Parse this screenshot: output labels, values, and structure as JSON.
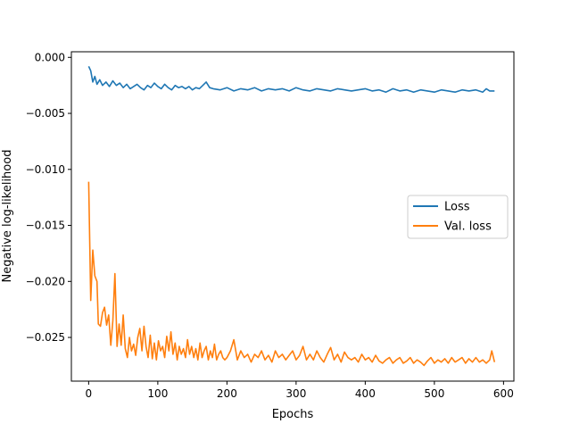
{
  "chart_data": {
    "type": "line",
    "title": "",
    "xlabel": "Epochs",
    "ylabel": "Negative log-likelihood",
    "xlim": [
      -25,
      615
    ],
    "ylim": [
      -0.0289,
      0.0005
    ],
    "xticks": [
      0,
      100,
      200,
      300,
      400,
      500,
      600
    ],
    "xtick_labels": [
      "0",
      "100",
      "200",
      "300",
      "400",
      "500",
      "600"
    ],
    "yticks": [
      0.0,
      -0.005,
      -0.01,
      -0.015,
      -0.02,
      -0.025
    ],
    "ytick_labels": [
      "0.000",
      "−0.005",
      "−0.010",
      "−0.015",
      "−0.020",
      "−0.025"
    ],
    "grid": false,
    "legend_position": "center-right",
    "series": [
      {
        "name": "Loss",
        "color": "#1f77b4",
        "x": [
          0,
          3,
          6,
          9,
          12,
          16,
          20,
          25,
          30,
          35,
          40,
          45,
          50,
          55,
          60,
          65,
          70,
          75,
          80,
          85,
          90,
          95,
          100,
          105,
          110,
          115,
          120,
          125,
          130,
          135,
          140,
          145,
          150,
          155,
          160,
          165,
          170,
          175,
          180,
          190,
          200,
          210,
          220,
          230,
          240,
          250,
          260,
          270,
          280,
          290,
          300,
          310,
          320,
          330,
          340,
          350,
          360,
          370,
          380,
          390,
          400,
          410,
          420,
          430,
          440,
          450,
          460,
          470,
          480,
          490,
          500,
          510,
          520,
          530,
          540,
          550,
          560,
          570,
          575,
          580,
          587
        ],
        "y": [
          -0.0008,
          -0.0012,
          -0.0022,
          -0.0017,
          -0.0024,
          -0.002,
          -0.0025,
          -0.0022,
          -0.0026,
          -0.0021,
          -0.0025,
          -0.0023,
          -0.0027,
          -0.0024,
          -0.0028,
          -0.0026,
          -0.0024,
          -0.0027,
          -0.0029,
          -0.0025,
          -0.0027,
          -0.0023,
          -0.0026,
          -0.0028,
          -0.0024,
          -0.0027,
          -0.0029,
          -0.0025,
          -0.0027,
          -0.0026,
          -0.0028,
          -0.0026,
          -0.0029,
          -0.0027,
          -0.0028,
          -0.0025,
          -0.0022,
          -0.0027,
          -0.0028,
          -0.0029,
          -0.0027,
          -0.003,
          -0.0028,
          -0.0029,
          -0.0027,
          -0.003,
          -0.0028,
          -0.0029,
          -0.0028,
          -0.003,
          -0.0027,
          -0.0029,
          -0.003,
          -0.0028,
          -0.0029,
          -0.003,
          -0.0028,
          -0.0029,
          -0.003,
          -0.0029,
          -0.0028,
          -0.003,
          -0.0029,
          -0.0031,
          -0.0028,
          -0.003,
          -0.0029,
          -0.0031,
          -0.0029,
          -0.003,
          -0.0031,
          -0.0029,
          -0.003,
          -0.0031,
          -0.0029,
          -0.003,
          -0.0029,
          -0.0031,
          -0.0028,
          -0.003,
          -0.003
        ]
      },
      {
        "name": "Val. loss",
        "color": "#ff7f0e",
        "x": [
          0,
          3,
          6,
          9,
          12,
          14,
          17,
          20,
          23,
          26,
          29,
          32,
          35,
          38,
          41,
          44,
          47,
          50,
          53,
          56,
          59,
          62,
          65,
          68,
          71,
          74,
          77,
          80,
          83,
          86,
          89,
          92,
          95,
          98,
          101,
          104,
          107,
          110,
          113,
          116,
          119,
          122,
          125,
          128,
          131,
          134,
          137,
          140,
          143,
          146,
          149,
          152,
          155,
          158,
          161,
          164,
          167,
          170,
          173,
          176,
          179,
          182,
          185,
          188,
          191,
          194,
          197,
          200,
          205,
          210,
          215,
          220,
          225,
          230,
          235,
          240,
          245,
          250,
          255,
          260,
          265,
          270,
          275,
          280,
          285,
          290,
          295,
          300,
          305,
          310,
          315,
          320,
          325,
          330,
          335,
          340,
          345,
          350,
          355,
          360,
          365,
          370,
          375,
          380,
          385,
          390,
          395,
          400,
          405,
          410,
          415,
          420,
          425,
          430,
          435,
          440,
          445,
          450,
          455,
          460,
          465,
          470,
          475,
          480,
          485,
          490,
          495,
          500,
          505,
          510,
          515,
          520,
          525,
          530,
          535,
          540,
          545,
          550,
          555,
          560,
          565,
          570,
          575,
          580,
          583,
          587
        ],
        "y": [
          -0.0111,
          -0.0217,
          -0.0172,
          -0.0195,
          -0.02,
          -0.0238,
          -0.024,
          -0.0228,
          -0.0223,
          -0.0239,
          -0.023,
          -0.0257,
          -0.0235,
          -0.0193,
          -0.0258,
          -0.0238,
          -0.0257,
          -0.023,
          -0.026,
          -0.0268,
          -0.025,
          -0.0262,
          -0.0256,
          -0.0266,
          -0.025,
          -0.0242,
          -0.0262,
          -0.024,
          -0.0258,
          -0.0268,
          -0.0248,
          -0.0269,
          -0.0255,
          -0.027,
          -0.0253,
          -0.0262,
          -0.0258,
          -0.0268,
          -0.0249,
          -0.0262,
          -0.0245,
          -0.0265,
          -0.0255,
          -0.027,
          -0.0258,
          -0.0265,
          -0.026,
          -0.0268,
          -0.0252,
          -0.0265,
          -0.0258,
          -0.0268,
          -0.026,
          -0.027,
          -0.0255,
          -0.0268,
          -0.0262,
          -0.0258,
          -0.027,
          -0.0262,
          -0.0268,
          -0.0256,
          -0.027,
          -0.0265,
          -0.0262,
          -0.0268,
          -0.027,
          -0.0268,
          -0.0262,
          -0.0252,
          -0.027,
          -0.0262,
          -0.0268,
          -0.0265,
          -0.0272,
          -0.0265,
          -0.0268,
          -0.0262,
          -0.027,
          -0.0266,
          -0.0272,
          -0.0262,
          -0.0268,
          -0.0265,
          -0.027,
          -0.0266,
          -0.0262,
          -0.027,
          -0.0266,
          -0.0258,
          -0.027,
          -0.0265,
          -0.027,
          -0.0262,
          -0.0268,
          -0.0272,
          -0.0265,
          -0.0259,
          -0.027,
          -0.0265,
          -0.0272,
          -0.0263,
          -0.0268,
          -0.027,
          -0.0268,
          -0.0272,
          -0.0265,
          -0.027,
          -0.0268,
          -0.0272,
          -0.0266,
          -0.0271,
          -0.0273,
          -0.027,
          -0.0268,
          -0.0273,
          -0.027,
          -0.0268,
          -0.0273,
          -0.0271,
          -0.0268,
          -0.0273,
          -0.027,
          -0.0272,
          -0.0275,
          -0.0271,
          -0.0268,
          -0.0273,
          -0.027,
          -0.0272,
          -0.0269,
          -0.0273,
          -0.0268,
          -0.0272,
          -0.027,
          -0.0268,
          -0.0273,
          -0.0269,
          -0.0272,
          -0.0268,
          -0.0272,
          -0.027,
          -0.0273,
          -0.027,
          -0.0262,
          -0.0272
        ]
      }
    ]
  }
}
